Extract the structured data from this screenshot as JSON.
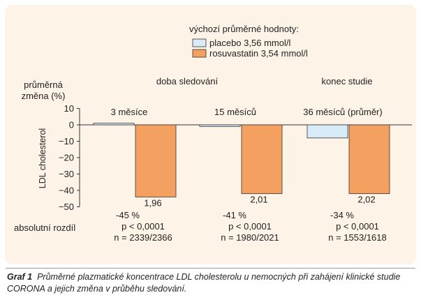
{
  "chart_data": {
    "type": "bar",
    "legend_title": "výchozí průměrné hodnoty:",
    "series": [
      {
        "name": "placebo 3,56 mmol/l",
        "color": "#d7ecf7",
        "values": [
          1,
          -1,
          -8
        ]
      },
      {
        "name": "rosuvastatin 3,54 mmol/l",
        "color": "#f4a060",
        "values": [
          -44,
          -42,
          -42
        ]
      }
    ],
    "categories": [
      "3 měsíce",
      "15 měsíců",
      "36 měsíců (průměr)"
    ],
    "group_title": "doba sledování",
    "end_title": "konec studie",
    "ylabel_top": [
      "průměrná",
      "změna (%)"
    ],
    "yaxis_title": "LDL cholesterol",
    "ylim": [
      -50,
      10
    ],
    "yticks": [
      "10",
      "0",
      "-10",
      "-20",
      "-30",
      "-40",
      "-50"
    ],
    "bar_labels": [
      "1,96",
      "2,01",
      "2,02"
    ],
    "abs_diff_label": "absolutní rozdíl",
    "stats": [
      [
        "-45 %",
        "p < 0,0001",
        "n = 2339/2366"
      ],
      [
        "-41 %",
        "p < 0,0001",
        "n = 1980/2021"
      ],
      [
        "-34 %",
        "p < 0,0001",
        "n = 1553/1618"
      ]
    ]
  },
  "caption": {
    "label": "Graf 1",
    "text": "Průměrné plazmatické koncentrace LDL cholesterolu u nemocných při zahájení klinické studie CORONA a jejich změna v průběhu sledování."
  }
}
